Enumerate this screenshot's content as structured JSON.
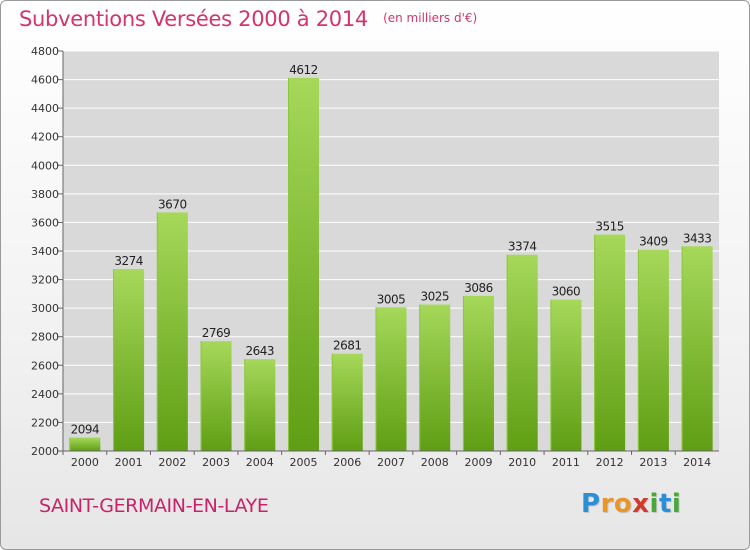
{
  "header": {
    "title": "Subventions Versées 2000 à 2014",
    "unit": "(en milliers d'€)"
  },
  "footer": {
    "commune": "SAINT-GERMAIN-EN-LAYE",
    "logo_letters": [
      "P",
      "r",
      "o",
      "x",
      "i",
      "t",
      "i"
    ],
    "logo_colors": [
      "#2a8fd6",
      "#e8962a",
      "#e8962a",
      "#d43a2a",
      "#4aa83a",
      "#2a8fd6",
      "#4aa83a"
    ]
  },
  "colors": {
    "title": "#d6336c",
    "bar_top": "#a6d85a",
    "bar_bottom": "#5f9e14",
    "grid": "#ffffff",
    "plot_bg": "#d9d9d9"
  },
  "chart_data": {
    "type": "bar",
    "categories": [
      "2000",
      "2001",
      "2002",
      "2003",
      "2004",
      "2005",
      "2006",
      "2007",
      "2008",
      "2009",
      "2010",
      "2011",
      "2012",
      "2013",
      "2014"
    ],
    "values": [
      2094,
      3274,
      3670,
      2769,
      2643,
      4612,
      2681,
      3005,
      3025,
      3086,
      3374,
      3060,
      3515,
      3409,
      3433
    ],
    "title": "Subventions Versées 2000 à 2014",
    "xlabel": "",
    "ylabel": "",
    "ylim": [
      2000,
      4800
    ],
    "yticks": [
      2000,
      2200,
      2400,
      2600,
      2800,
      3000,
      3200,
      3400,
      3600,
      3800,
      4000,
      4200,
      4400,
      4600,
      4800
    ],
    "grid": true,
    "data_labels": true
  }
}
